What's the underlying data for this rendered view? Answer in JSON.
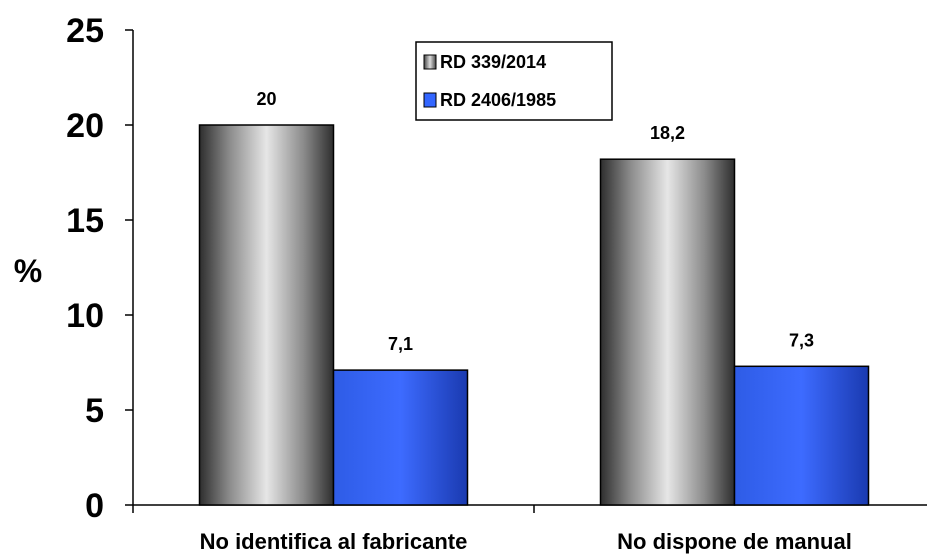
{
  "chart_data": {
    "type": "bar",
    "categories": [
      "No identifica al fabricante",
      "No dispone de manual"
    ],
    "series": [
      {
        "name": "RD 339/2014",
        "values": [
          20,
          18.2
        ],
        "value_labels": [
          "20",
          "18,2"
        ],
        "color": "#b3b3b3"
      },
      {
        "name": "RD 2406/1985",
        "values": [
          7.1,
          7.3
        ],
        "value_labels": [
          "7,1",
          "7,3"
        ],
        "color": "#3366ff"
      }
    ],
    "ylabel": "%",
    "xlabel": "",
    "ylim": [
      0,
      25
    ],
    "yticks": [
      0,
      5,
      10,
      15,
      20,
      25
    ],
    "grid": false,
    "legend_position": "top-center"
  }
}
